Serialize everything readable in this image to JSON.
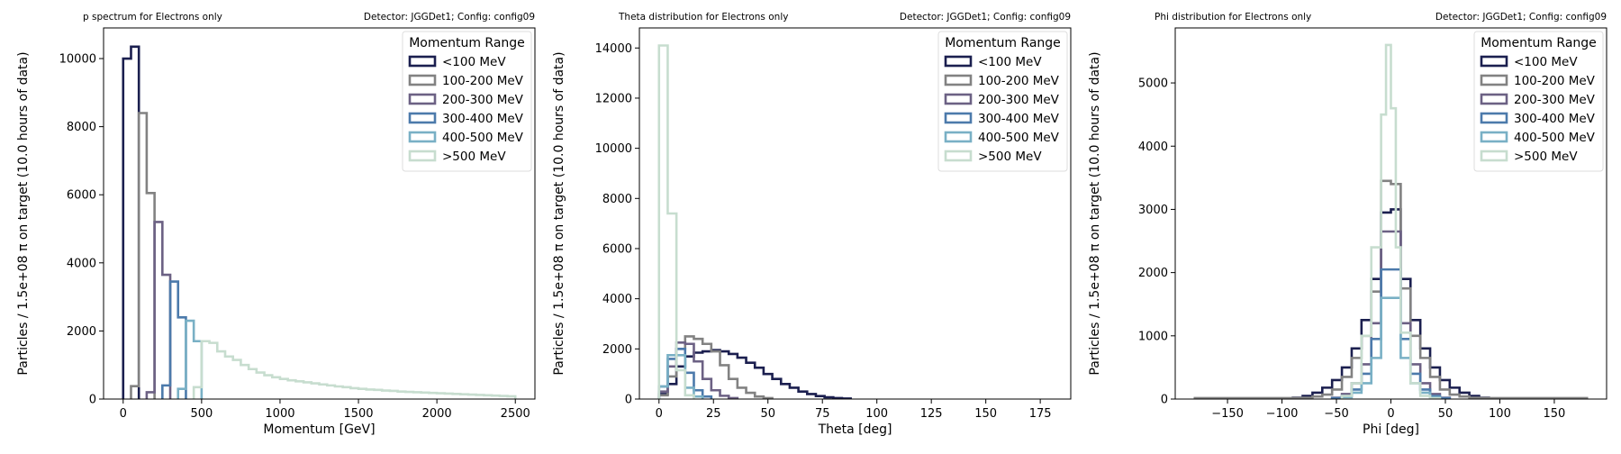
{
  "figure": {
    "y_axis_label": "Particles / 1.5e+08 π on target (10.0 hours of data)"
  },
  "chart_data": [
    {
      "type": "line",
      "subtype": "step-histogram",
      "title": "p spectrum for Electrons only",
      "subtitle": "Detector: JGGDet1; Config: config09",
      "xlabel": "Momentum [GeV]",
      "ylabel": "Particles / 1.5e+08 π on target (10.0 hours of data)",
      "xlim": [
        -125,
        2625
      ],
      "ylim": [
        0,
        10900
      ],
      "xticks": [
        0,
        500,
        1000,
        1500,
        2000,
        2500
      ],
      "yticks": [
        0,
        2000,
        4000,
        6000,
        8000,
        10000
      ],
      "grid": false,
      "legend": {
        "title": "Momentum Range",
        "placement": "top-right"
      },
      "series": [
        {
          "name": "<100 MeV",
          "color": "#1b1f4f",
          "edges": [
            0,
            50,
            100
          ],
          "values": [
            10000,
            10350
          ]
        },
        {
          "name": "100-200 MeV",
          "color": "#828282",
          "edges": [
            50,
            100,
            150,
            200
          ],
          "values": [
            380,
            8400,
            6050
          ]
        },
        {
          "name": "200-300 MeV",
          "color": "#6c6184",
          "edges": [
            150,
            200,
            250,
            300
          ],
          "values": [
            200,
            5200,
            3650
          ]
        },
        {
          "name": "300-400 MeV",
          "color": "#4c7aab",
          "edges": [
            250,
            300,
            350,
            400
          ],
          "values": [
            400,
            3450,
            2400
          ]
        },
        {
          "name": "400-500 MeV",
          "color": "#79b0c5",
          "edges": [
            350,
            400,
            450,
            500
          ],
          "values": [
            300,
            2300,
            1700
          ]
        },
        {
          "name": ">500 MeV",
          "color": "#c7ddcf",
          "edges": [
            450,
            500,
            550,
            600,
            650,
            700,
            750,
            800,
            850,
            900,
            950,
            1000,
            1050,
            1100,
            1150,
            1200,
            1250,
            1300,
            1350,
            1400,
            1450,
            1500,
            1550,
            1600,
            1650,
            1700,
            1750,
            1800,
            1850,
            1900,
            1950,
            2000,
            2050,
            2100,
            2150,
            2200,
            2250,
            2300,
            2350,
            2400,
            2450,
            2500
          ],
          "values": [
            350,
            1700,
            1650,
            1400,
            1250,
            1150,
            1000,
            880,
            780,
            700,
            640,
            590,
            550,
            520,
            490,
            460,
            430,
            400,
            370,
            350,
            320,
            300,
            280,
            270,
            250,
            240,
            220,
            210,
            200,
            190,
            180,
            170,
            160,
            150,
            140,
            130,
            120,
            110,
            100,
            90,
            80
          ]
        }
      ]
    },
    {
      "type": "line",
      "subtype": "step-histogram",
      "title": "Theta distribution for Electrons only",
      "subtitle": "Detector: JGGDet1; Config: config09",
      "xlabel": "Theta [deg]",
      "ylabel": "Particles / 1.5e+08 π on target (10.0 hours of data)",
      "xlim": [
        -9,
        189
      ],
      "ylim": [
        0,
        14800
      ],
      "xticks": [
        0,
        25,
        50,
        75,
        100,
        125,
        150,
        175
      ],
      "yticks": [
        0,
        2000,
        4000,
        6000,
        8000,
        10000,
        12000,
        14000
      ],
      "grid": false,
      "legend": {
        "title": "Momentum Range",
        "placement": "top-right"
      },
      "series": [
        {
          "name": "<100 MeV",
          "color": "#1b1f4f",
          "edges": [
            0,
            4,
            8,
            12,
            16,
            20,
            24,
            28,
            32,
            36,
            40,
            44,
            48,
            52,
            56,
            60,
            64,
            68,
            72,
            76,
            80,
            84,
            88
          ],
          "values": [
            200,
            600,
            1300,
            1700,
            1850,
            1900,
            1950,
            1900,
            1800,
            1650,
            1450,
            1250,
            1000,
            800,
            600,
            450,
            300,
            200,
            120,
            70,
            40,
            20
          ]
        },
        {
          "name": "100-200 MeV",
          "color": "#828282",
          "edges": [
            0,
            4,
            8,
            12,
            16,
            20,
            24,
            28,
            32,
            36,
            40,
            44,
            48,
            52
          ],
          "values": [
            150,
            900,
            2000,
            2500,
            2400,
            2200,
            1900,
            1350,
            800,
            450,
            250,
            100,
            40
          ]
        },
        {
          "name": "200-300 MeV",
          "color": "#6c6184",
          "edges": [
            0,
            4,
            8,
            12,
            16,
            20,
            24,
            28,
            32,
            36
          ],
          "values": [
            300,
            1300,
            2250,
            2200,
            1500,
            800,
            350,
            130,
            40
          ]
        },
        {
          "name": "300-400 MeV",
          "color": "#4c7aab",
          "edges": [
            0,
            4,
            8,
            12,
            16,
            20,
            24
          ],
          "values": [
            500,
            1600,
            2000,
            1050,
            350,
            100
          ]
        },
        {
          "name": "400-500 MeV",
          "color": "#79b0c5",
          "edges": [
            0,
            4,
            8,
            12,
            16,
            20
          ],
          "values": [
            500,
            1750,
            1750,
            450,
            100
          ]
        },
        {
          "name": ">500 MeV",
          "color": "#c7ddcf",
          "edges": [
            0,
            4,
            8,
            12,
            16
          ],
          "values": [
            14100,
            7400,
            1150,
            150
          ]
        }
      ]
    },
    {
      "type": "line",
      "subtype": "step-histogram",
      "title": "Phi distribution for Electrons only",
      "subtitle": "Detector: JGGDet1; Config: config09",
      "xlabel": "Phi [deg]",
      "ylabel": "Particles / 1.5e+08 π on target (10.0 hours of data)",
      "xlim": [
        -198,
        198
      ],
      "ylim": [
        0,
        5870
      ],
      "xticks": [
        -150,
        -100,
        -50,
        0,
        50,
        100,
        150
      ],
      "yticks": [
        0,
        1000,
        2000,
        3000,
        4000,
        5000
      ],
      "grid": false,
      "legend": {
        "title": "Momentum Range",
        "placement": "top-right"
      },
      "series": [
        {
          "name": "<100 MeV",
          "color": "#1b1f4f",
          "edges": [
            -90,
            -81,
            -72,
            -63,
            -54,
            -45,
            -36,
            -27,
            -18,
            -9,
            0,
            9,
            18,
            27,
            36,
            45,
            54,
            63,
            72,
            81,
            90
          ],
          "values": [
            20,
            50,
            100,
            180,
            300,
            500,
            800,
            1250,
            1900,
            2950,
            3000,
            1900,
            1250,
            800,
            500,
            300,
            180,
            100,
            50,
            20
          ]
        },
        {
          "name": "100-200 MeV",
          "color": "#828282",
          "edges": [
            -180,
            -171,
            -162,
            -153,
            -144,
            -135,
            -126,
            -117,
            -108,
            -99,
            -90,
            -81,
            -72,
            -63,
            -54,
            -45,
            -36,
            -27,
            -18,
            -9,
            0,
            9,
            18,
            27,
            36,
            45,
            54,
            63,
            72,
            81,
            90,
            99,
            108,
            117,
            126,
            135,
            144,
            153,
            162,
            171,
            180
          ],
          "values": [
            15,
            15,
            15,
            15,
            15,
            15,
            15,
            15,
            15,
            15,
            15,
            20,
            40,
            70,
            150,
            350,
            650,
            1000,
            1700,
            3450,
            3400,
            1750,
            1000,
            650,
            350,
            150,
            70,
            40,
            20,
            15,
            15,
            15,
            15,
            15,
            15,
            15,
            15,
            15,
            15,
            15
          ]
        },
        {
          "name": "200-300 MeV",
          "color": "#6c6184",
          "edges": [
            -54,
            -45,
            -36,
            -27,
            -18,
            -9,
            0,
            9,
            18,
            27,
            36,
            45,
            54
          ],
          "values": [
            20,
            80,
            250,
            550,
            1200,
            2650,
            2650,
            1200,
            550,
            250,
            80,
            20
          ]
        },
        {
          "name": "300-400 MeV",
          "color": "#4c7aab",
          "edges": [
            -54,
            -45,
            -36,
            -27,
            -18,
            -9,
            0,
            9,
            18,
            27,
            36,
            45,
            54
          ],
          "values": [
            15,
            50,
            150,
            400,
            950,
            2050,
            2050,
            950,
            400,
            150,
            50,
            15
          ]
        },
        {
          "name": "400-500 MeV",
          "color": "#79b0c5",
          "edges": [
            -45,
            -36,
            -27,
            -18,
            -9,
            0,
            9,
            18,
            27,
            36,
            45
          ],
          "values": [
            30,
            100,
            250,
            650,
            1600,
            1600,
            650,
            250,
            100,
            30
          ]
        },
        {
          "name": ">500 MeV",
          "color": "#c7ddcf",
          "edges": [
            -45,
            -36,
            -27,
            -18,
            -9,
            -4.5,
            0,
            4.5,
            9,
            18,
            27,
            36,
            45
          ],
          "values": [
            50,
            250,
            1000,
            2400,
            4500,
            5600,
            4600,
            2400,
            1050,
            250,
            50,
            10
          ]
        }
      ]
    }
  ]
}
